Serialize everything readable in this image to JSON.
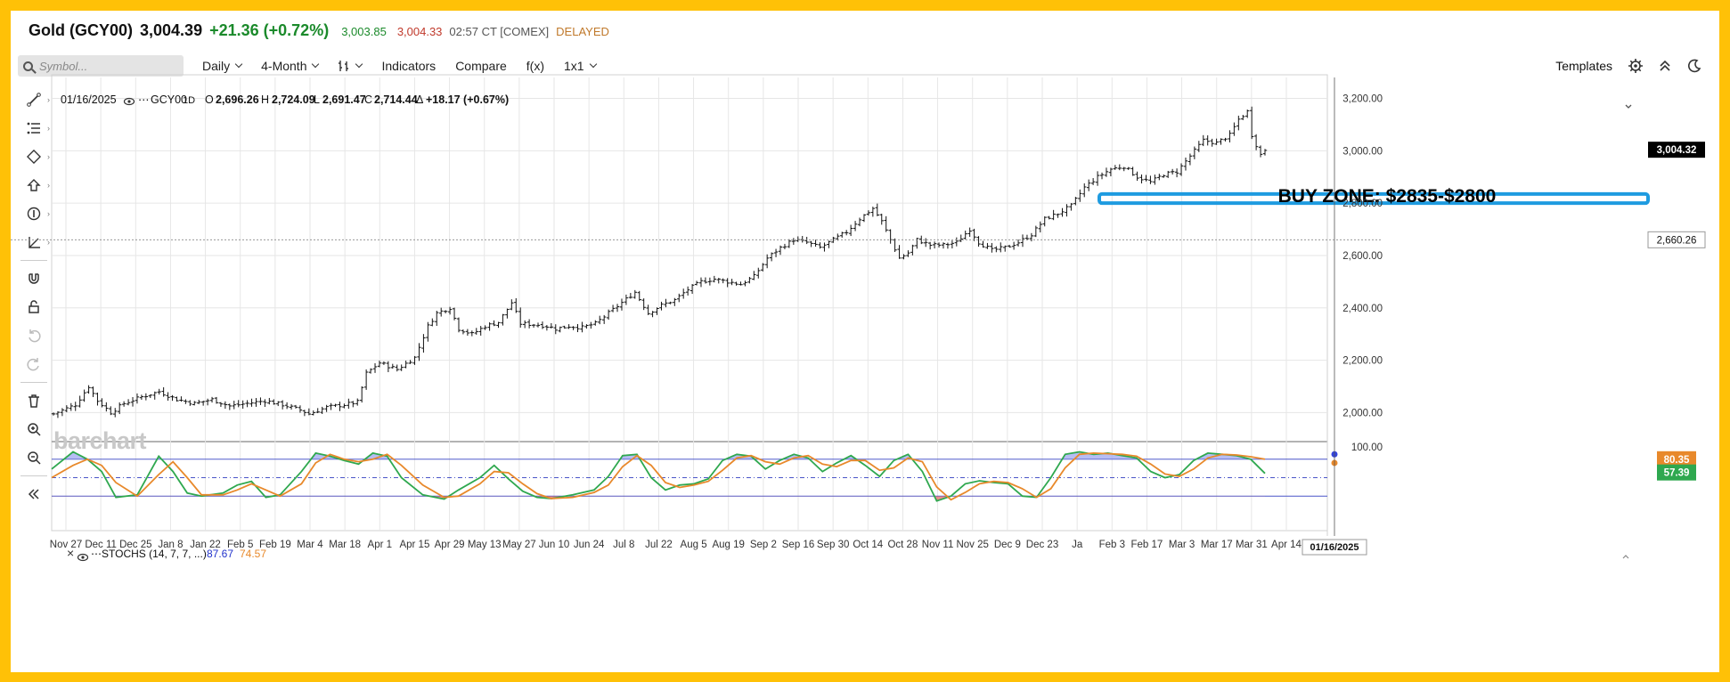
{
  "header": {
    "symbol": "Gold (GCY00)",
    "last": "3,004.39",
    "change": "+21.36 (+0.72%)",
    "bid": "3,003.85",
    "ask": "3,004.33",
    "time": "02:57 CT [COMEX]",
    "status": "DELAYED"
  },
  "toolbar": {
    "search_placeholder": "Symbol...",
    "interval": "Daily",
    "period": "4-Month",
    "chart_style_icon": "candlestick-icon",
    "indicators": "Indicators",
    "compare": "Compare",
    "fx": "f(x)",
    "layout": "1x1",
    "templates": "Templates"
  },
  "left_tools": [
    "line-tool-icon",
    "fib-tool-icon",
    "shape-tool-icon",
    "arrow-tool-icon",
    "marker-tool-icon",
    "measure-tool-icon",
    "magnet-icon",
    "lock-icon",
    "undo-icon",
    "redo-icon",
    "trash-icon",
    "zoom-in-icon",
    "zoom-out-icon",
    "collapse-icon"
  ],
  "legend": {
    "date": "01/16/2025",
    "series": "GCY00",
    "interval": "1D",
    "open_label": "O",
    "open": "2,696.26",
    "high_label": "H",
    "high": "2,724.09",
    "low_label": "L",
    "low": "2,691.47",
    "close_label": "C",
    "close": "2,714.44",
    "change_label": "Δ",
    "change": "+18.17 (+0.67%)"
  },
  "watermark": "barchart",
  "colors": {
    "frame": "#ffc107",
    "up": "#1b8a2b",
    "down": "#c0392b",
    "stoch_k": "#2fa84f",
    "stoch_d": "#e8892b",
    "zone": "#1e9be0",
    "bands": "#4a55c8"
  },
  "chart_data": [
    {
      "type": "ohlc",
      "ylim": [
        1930,
        3280
      ],
      "y_ticks": [
        "2,000.00",
        "2,200.00",
        "2,400.00",
        "2,600.00",
        "2,800.00",
        "3,000.00",
        "3,200.00"
      ],
      "y_tick_values": [
        2000,
        2200,
        2400,
        2600,
        2800,
        3000,
        3200
      ],
      "x_ticks": [
        "Nov 27",
        "Dec 11",
        "Dec 25",
        "Jan 8",
        "Jan 22",
        "Feb 5",
        "Feb 19",
        "Mar 4",
        "Mar 18",
        "Apr 1",
        "Apr 15",
        "Apr 29",
        "May 13",
        "May 27",
        "Jun 10",
        "Jun 24",
        "Jul 8",
        "Jul 22",
        "Aug 5",
        "Aug 19",
        "Sep 2",
        "Sep 16",
        "Sep 30",
        "Oct 14",
        "Oct 28",
        "Nov 11",
        "Nov 25",
        "Dec 9",
        "Dec 23",
        "Ja",
        "Feb 3",
        "Feb 17",
        "Mar 3",
        "Mar 17",
        "Mar 31",
        "Apr 14"
      ],
      "close_path": [
        [
          0,
          1995
        ],
        [
          5,
          2030
        ],
        [
          8,
          2100
        ],
        [
          10,
          2045
        ],
        [
          13,
          2000
        ],
        [
          16,
          2035
        ],
        [
          20,
          2060
        ],
        [
          24,
          2080
        ],
        [
          28,
          2050
        ],
        [
          32,
          2035
        ],
        [
          36,
          2050
        ],
        [
          40,
          2025
        ],
        [
          44,
          2035
        ],
        [
          48,
          2045
        ],
        [
          52,
          2030
        ],
        [
          56,
          2010
        ],
        [
          58,
          1995
        ],
        [
          62,
          2020
        ],
        [
          66,
          2030
        ],
        [
          69,
          2040
        ],
        [
          71,
          2150
        ],
        [
          74,
          2190
        ],
        [
          78,
          2165
        ],
        [
          82,
          2210
        ],
        [
          85,
          2330
        ],
        [
          87,
          2380
        ],
        [
          90,
          2400
        ],
        [
          92,
          2320
        ],
        [
          95,
          2300
        ],
        [
          98,
          2330
        ],
        [
          101,
          2345
        ],
        [
          104,
          2420
        ],
        [
          106,
          2340
        ],
        [
          110,
          2335
        ],
        [
          112,
          2330
        ],
        [
          114,
          2320
        ],
        [
          117,
          2330
        ],
        [
          120,
          2325
        ],
        [
          123,
          2340
        ],
        [
          126,
          2380
        ],
        [
          129,
          2420
        ],
        [
          132,
          2460
        ],
        [
          135,
          2380
        ],
        [
          138,
          2410
        ],
        [
          141,
          2430
        ],
        [
          144,
          2470
        ],
        [
          147,
          2500
        ],
        [
          150,
          2510
        ],
        [
          153,
          2500
        ],
        [
          156,
          2490
        ],
        [
          159,
          2520
        ],
        [
          162,
          2590
        ],
        [
          165,
          2630
        ],
        [
          168,
          2660
        ],
        [
          171,
          2650
        ],
        [
          174,
          2630
        ],
        [
          177,
          2660
        ],
        [
          180,
          2690
        ],
        [
          183,
          2740
        ],
        [
          186,
          2780
        ],
        [
          188,
          2730
        ],
        [
          190,
          2660
        ],
        [
          192,
          2590
        ],
        [
          194,
          2610
        ],
        [
          196,
          2660
        ],
        [
          199,
          2640
        ],
        [
          202,
          2640
        ],
        [
          205,
          2650
        ],
        [
          208,
          2700
        ],
        [
          210,
          2650
        ],
        [
          213,
          2620
        ],
        [
          216,
          2630
        ],
        [
          219,
          2650
        ],
        [
          222,
          2680
        ],
        [
          225,
          2740
        ],
        [
          228,
          2760
        ],
        [
          231,
          2790
        ],
        [
          234,
          2860
        ],
        [
          237,
          2900
        ],
        [
          240,
          2930
        ],
        [
          243,
          2940
        ],
        [
          246,
          2900
        ],
        [
          249,
          2880
        ],
        [
          252,
          2910
        ],
        [
          255,
          2920
        ],
        [
          258,
          2980
        ],
        [
          261,
          3040
        ],
        [
          264,
          3030
        ],
        [
          267,
          3060
        ],
        [
          269,
          3120
        ],
        [
          271,
          3150
        ],
        [
          272,
          3060
        ],
        [
          274,
          2985
        ],
        [
          275,
          3004
        ]
      ],
      "last_price_tag": "3,004.32",
      "crosshair_price_tag": "2,660.26",
      "crosshair_date_tag": "01/16/2025",
      "annotation": {
        "text": "BUY ZONE: $2835-$2800",
        "upper": 2835,
        "lower": 2800
      }
    },
    {
      "type": "line",
      "title": "STOCHS (14, 7, 7, ...)",
      "k_label": "87.67",
      "d_label": "74.57",
      "ylim": [
        0,
        100
      ],
      "upper_band": 80,
      "lower_band": 20,
      "mid": 50,
      "y_ticks": [
        "100.00"
      ],
      "right_tags": [
        "80.35",
        "57.39"
      ],
      "series": [
        {
          "name": "%K",
          "points": [
            [
              0,
              64
            ],
            [
              6,
              92
            ],
            [
              10,
              80
            ],
            [
              14,
              60
            ],
            [
              18,
              18
            ],
            [
              24,
              22
            ],
            [
              30,
              85
            ],
            [
              34,
              60
            ],
            [
              38,
              25
            ],
            [
              42,
              20
            ],
            [
              48,
              25
            ],
            [
              52,
              38
            ],
            [
              56,
              44
            ],
            [
              60,
              18
            ],
            [
              64,
              22
            ],
            [
              70,
              60
            ],
            [
              74,
              90
            ],
            [
              78,
              85
            ],
            [
              82,
              78
            ],
            [
              86,
              72
            ],
            [
              90,
              90
            ],
            [
              94,
              85
            ],
            [
              98,
              50
            ],
            [
              104,
              22
            ],
            [
              110,
              15
            ],
            [
              114,
              30
            ],
            [
              120,
              50
            ],
            [
              124,
              70
            ],
            [
              128,
              48
            ],
            [
              132,
              28
            ],
            [
              136,
              18
            ],
            [
              140,
              16
            ],
            [
              146,
              22
            ],
            [
              152,
              30
            ],
            [
              156,
              52
            ],
            [
              160,
              86
            ],
            [
              164,
              88
            ],
            [
              168,
              50
            ],
            [
              172,
              30
            ],
            [
              176,
              38
            ],
            [
              180,
              40
            ],
            [
              184,
              48
            ],
            [
              188,
              78
            ],
            [
              192,
              88
            ],
            [
              196,
              85
            ],
            [
              200,
              64
            ],
            [
              204,
              78
            ],
            [
              208,
              88
            ],
            [
              212,
              82
            ],
            [
              216,
              60
            ],
            [
              220,
              74
            ],
            [
              224,
              86
            ],
            [
              228,
              70
            ],
            [
              232,
              52
            ],
            [
              236,
              78
            ],
            [
              240,
              88
            ],
            [
              244,
              60
            ],
            [
              248,
              12
            ],
            [
              252,
              20
            ],
            [
              256,
              40
            ],
            [
              260,
              45
            ],
            [
              264,
              42
            ],
            [
              268,
              40
            ],
            [
              272,
              20
            ],
            [
              276,
              18
            ],
            [
              280,
              50
            ],
            [
              284,
              88
            ],
            [
              288,
              92
            ],
            [
              292,
              88
            ],
            [
              296,
              90
            ],
            [
              300,
              86
            ],
            [
              304,
              82
            ],
            [
              308,
              60
            ],
            [
              312,
              50
            ],
            [
              316,
              55
            ],
            [
              320,
              78
            ],
            [
              324,
              90
            ],
            [
              328,
              88
            ],
            [
              332,
              86
            ],
            [
              336,
              80
            ],
            [
              340,
              57
            ]
          ]
        },
        {
          "name": "%D",
          "points": [
            [
              0,
              50
            ],
            [
              6,
              70
            ],
            [
              10,
              80
            ],
            [
              14,
              70
            ],
            [
              18,
              42
            ],
            [
              24,
              20
            ],
            [
              30,
              55
            ],
            [
              34,
              76
            ],
            [
              38,
              50
            ],
            [
              42,
              22
            ],
            [
              48,
              22
            ],
            [
              52,
              30
            ],
            [
              56,
              40
            ],
            [
              60,
              30
            ],
            [
              64,
              20
            ],
            [
              70,
              40
            ],
            [
              74,
              74
            ],
            [
              78,
              88
            ],
            [
              82,
              80
            ],
            [
              86,
              76
            ],
            [
              90,
              80
            ],
            [
              94,
              88
            ],
            [
              98,
              70
            ],
            [
              104,
              38
            ],
            [
              110,
              18
            ],
            [
              114,
              20
            ],
            [
              120,
              40
            ],
            [
              124,
              60
            ],
            [
              128,
              58
            ],
            [
              132,
              40
            ],
            [
              136,
              24
            ],
            [
              140,
              16
            ],
            [
              146,
              18
            ],
            [
              152,
              26
            ],
            [
              156,
              38
            ],
            [
              160,
              68
            ],
            [
              164,
              86
            ],
            [
              168,
              70
            ],
            [
              172,
              42
            ],
            [
              176,
              34
            ],
            [
              180,
              38
            ],
            [
              184,
              44
            ],
            [
              188,
              62
            ],
            [
              192,
              82
            ],
            [
              196,
              86
            ],
            [
              200,
              76
            ],
            [
              204,
              72
            ],
            [
              208,
              82
            ],
            [
              212,
              86
            ],
            [
              216,
              72
            ],
            [
              220,
              68
            ],
            [
              224,
              78
            ],
            [
              228,
              78
            ],
            [
              232,
              62
            ],
            [
              236,
              66
            ],
            [
              240,
              82
            ],
            [
              244,
              76
            ],
            [
              248,
              35
            ],
            [
              252,
              14
            ],
            [
              256,
              26
            ],
            [
              260,
              40
            ],
            [
              264,
              44
            ],
            [
              268,
              42
            ],
            [
              272,
              32
            ],
            [
              276,
              18
            ],
            [
              280,
              32
            ],
            [
              284,
              66
            ],
            [
              288,
              88
            ],
            [
              292,
              90
            ],
            [
              296,
              89
            ],
            [
              300,
              88
            ],
            [
              304,
              85
            ],
            [
              308,
              72
            ],
            [
              312,
              56
            ],
            [
              316,
              52
            ],
            [
              320,
              64
            ],
            [
              324,
              82
            ],
            [
              328,
              88
            ],
            [
              332,
              87
            ],
            [
              336,
              84
            ],
            [
              340,
              80
            ]
          ]
        }
      ]
    }
  ]
}
